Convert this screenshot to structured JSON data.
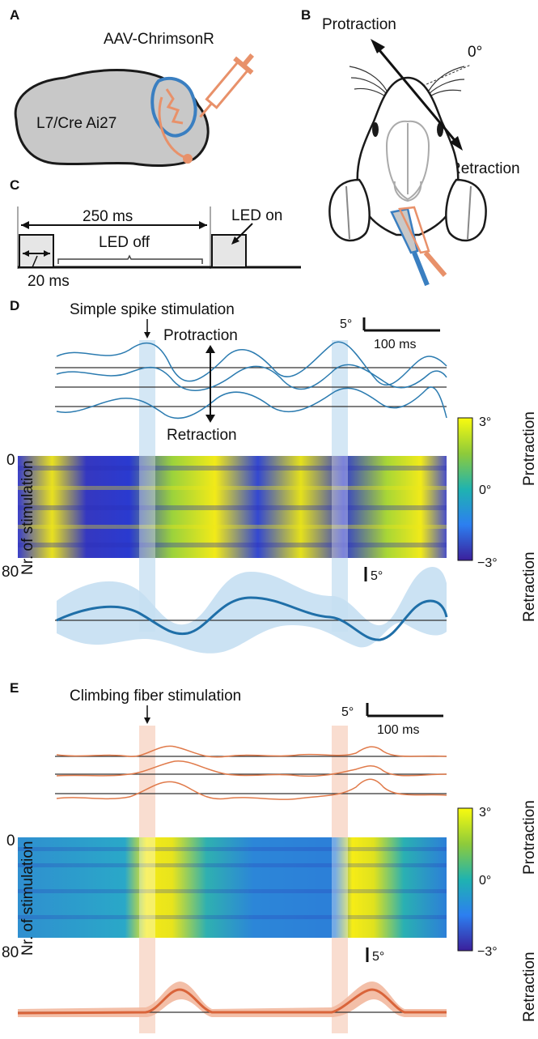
{
  "panels": {
    "a": {
      "label": "A",
      "virus": "AAV-ChrimsonR",
      "mouse": "L7/Cre Ai27"
    },
    "b": {
      "label": "B",
      "protraction": "Protraction",
      "retraction": "Retraction",
      "zero_angle": "0°"
    },
    "c": {
      "label": "C",
      "period": "250 ms",
      "led_on": "LED on",
      "led_off": "LED off",
      "pulse": "20 ms"
    },
    "d": {
      "label": "D",
      "title": "Simple spike stimulation",
      "protraction": "Protraction",
      "retraction": "Retraction",
      "scale_deg": "5°",
      "scale_ms": "100 ms",
      "y_label": "Nr. of stimulation",
      "trial_start": "0",
      "trial_end": "80",
      "colorbar_max": "3°",
      "colorbar_mid": "0°",
      "colorbar_min": "−3°",
      "side_top": "Protraction",
      "side_bottom": "Retraction",
      "avg_scale": "5°"
    },
    "e": {
      "label": "E",
      "title": "Climbing fiber stimulation",
      "scale_deg": "5°",
      "scale_ms": "100 ms",
      "y_label": "Nr. of stimulation",
      "trial_start": "0",
      "trial_end": "80",
      "colorbar_max": "3°",
      "colorbar_mid": "0°",
      "colorbar_min": "−3°",
      "side_top": "Protraction",
      "side_bottom": "Retraction",
      "avg_scale": "5°"
    }
  },
  "colors": {
    "simple_spike_trace": "#2b7bb0",
    "simple_spike_band": "#c5dff2",
    "climbing_fiber_trace": "#e07a4a",
    "climbing_fiber_band": "#f7d4c4",
    "brain_gray": "#c8c8c8",
    "cerebellum_outline": "#3a7fc1",
    "injection_orange": "#e8916a"
  }
}
